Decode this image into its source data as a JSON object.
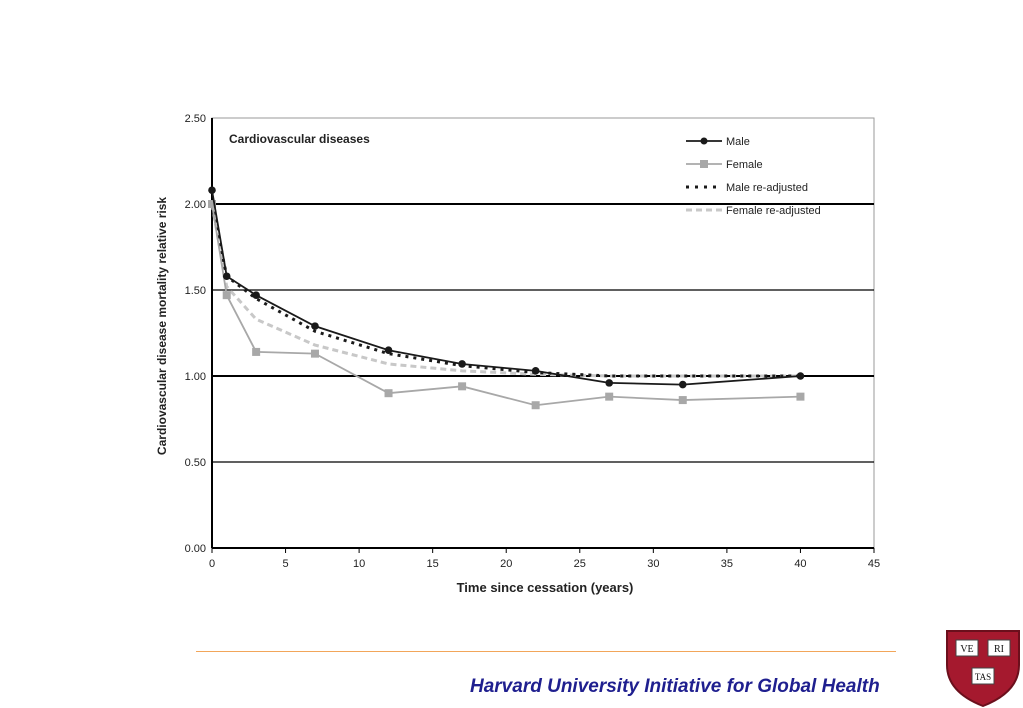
{
  "chart_data": {
    "type": "line",
    "title": "Cardiovascular diseases",
    "xlabel": "Time since cessation (years)",
    "ylabel": "Cardiovascular disease mortality relative risk",
    "xlim": [
      0,
      45
    ],
    "ylim": [
      0,
      2.5
    ],
    "x_ticks": [
      "0",
      "5",
      "10",
      "15",
      "20",
      "25",
      "30",
      "35",
      "40",
      "45"
    ],
    "y_ticks": [
      "0.00",
      "0.50",
      "1.00",
      "1.50",
      "2.00",
      "2.50"
    ],
    "grid": "horizontal",
    "legend_position": "top-right",
    "series": [
      {
        "name": "Male",
        "style": "solid-marker-diamond",
        "color": "#1a1a1a",
        "x": [
          0,
          1,
          3,
          7,
          12,
          17,
          22,
          27,
          32,
          40
        ],
        "y": [
          2.08,
          1.58,
          1.47,
          1.29,
          1.15,
          1.07,
          1.03,
          0.96,
          0.95,
          1.0
        ]
      },
      {
        "name": "Female",
        "style": "solid-marker-square",
        "color": "#a8a8a8",
        "x": [
          0,
          1,
          3,
          7,
          12,
          17,
          22,
          27,
          32,
          40
        ],
        "y": [
          2.0,
          1.47,
          1.14,
          1.13,
          0.9,
          0.94,
          0.83,
          0.88,
          0.86,
          0.88
        ]
      },
      {
        "name": "Male re-adjusted",
        "style": "dotted",
        "color": "#1a1a1a",
        "x": [
          0,
          1,
          3,
          7,
          12,
          17,
          22,
          27,
          32,
          40
        ],
        "y": [
          2.0,
          1.58,
          1.45,
          1.26,
          1.13,
          1.06,
          1.02,
          1.0,
          1.0,
          1.0
        ]
      },
      {
        "name": "Female re-adjusted",
        "style": "dashed",
        "color": "#c8c8c8",
        "x": [
          0,
          1,
          3,
          7,
          12,
          17,
          22,
          27,
          32,
          40
        ],
        "y": [
          2.0,
          1.52,
          1.33,
          1.18,
          1.07,
          1.03,
          1.01,
          1.0,
          1.0,
          1.0
        ]
      }
    ]
  },
  "footer": {
    "text": "Harvard University Initiative for Global Health"
  },
  "seal": {
    "motto_top_left": "VE",
    "motto_top_right": "RI",
    "motto_bottom": "TAS",
    "color": "#a5192e"
  }
}
